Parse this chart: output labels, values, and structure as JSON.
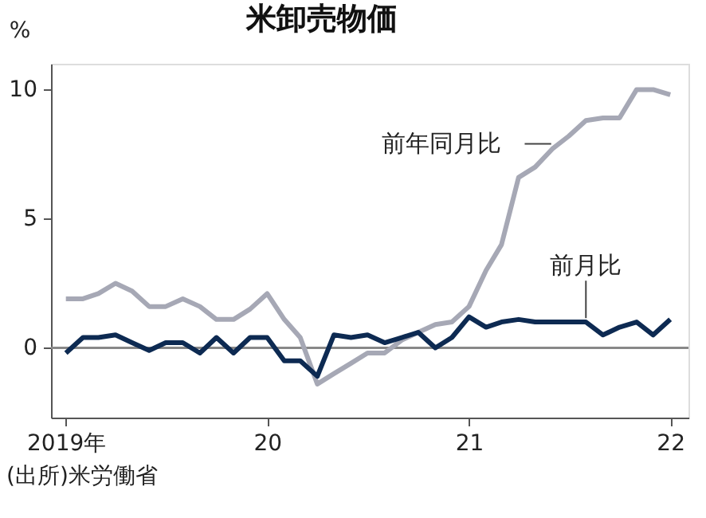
{
  "chart_data": {
    "type": "line",
    "title": "米卸売物価",
    "ylabel": "%",
    "x": [
      "2019-01",
      "2019-02",
      "2019-03",
      "2019-04",
      "2019-05",
      "2019-06",
      "2019-07",
      "2019-08",
      "2019-09",
      "2019-10",
      "2019-11",
      "2019-12",
      "2020-01",
      "2020-02",
      "2020-03",
      "2020-04",
      "2020-05",
      "2020-06",
      "2020-07",
      "2020-08",
      "2020-09",
      "2020-10",
      "2020-11",
      "2020-12",
      "2021-01",
      "2021-02",
      "2021-03",
      "2021-04",
      "2021-05",
      "2021-06",
      "2021-07",
      "2021-08",
      "2021-09",
      "2021-10",
      "2021-11",
      "2021-12",
      "2022-01"
    ],
    "series": [
      {
        "name": "前年同月比",
        "color": "#a6a8b5",
        "values": [
          1.9,
          1.9,
          2.1,
          2.5,
          2.2,
          1.6,
          1.6,
          1.9,
          1.6,
          1.1,
          1.1,
          1.5,
          2.1,
          1.1,
          0.4,
          -1.4,
          -1.0,
          -0.6,
          -0.2,
          -0.2,
          0.3,
          0.6,
          0.9,
          1.0,
          1.6,
          3.0,
          4.0,
          6.6,
          7.0,
          7.7,
          8.2,
          8.8,
          8.9,
          8.9,
          10.0,
          10.0,
          9.8
        ]
      },
      {
        "name": "前月比",
        "color": "#0d2a52",
        "values": [
          -0.2,
          0.4,
          0.4,
          0.5,
          0.2,
          -0.1,
          0.2,
          0.2,
          -0.2,
          0.4,
          -0.2,
          0.4,
          0.4,
          -0.5,
          -0.5,
          -1.1,
          0.5,
          0.4,
          0.5,
          0.2,
          0.4,
          0.6,
          0.0,
          0.4,
          1.2,
          0.8,
          1.0,
          1.1,
          1.0,
          1.0,
          1.0,
          1.0,
          0.5,
          0.8,
          1.0,
          0.5,
          1.1
        ]
      }
    ],
    "xlim": [
      "2018-12-05",
      "2022-02-03"
    ],
    "xticks": [
      {
        "value": "2019-01",
        "label": "2019年"
      },
      {
        "value": "2020-01",
        "label": "20"
      },
      {
        "value": "2021-01",
        "label": "21"
      },
      {
        "value": "2022-01",
        "label": "22"
      }
    ],
    "ylim": [
      -2.7,
      11
    ],
    "yticks": [
      0,
      5,
      10
    ],
    "grid": false,
    "marker": "none",
    "line_style": "solid",
    "ref_lines": [
      {
        "axis": "y",
        "value": 0,
        "label": null,
        "color": "#888888"
      }
    ],
    "annotations": [
      "(出所)米労働省"
    ]
  }
}
